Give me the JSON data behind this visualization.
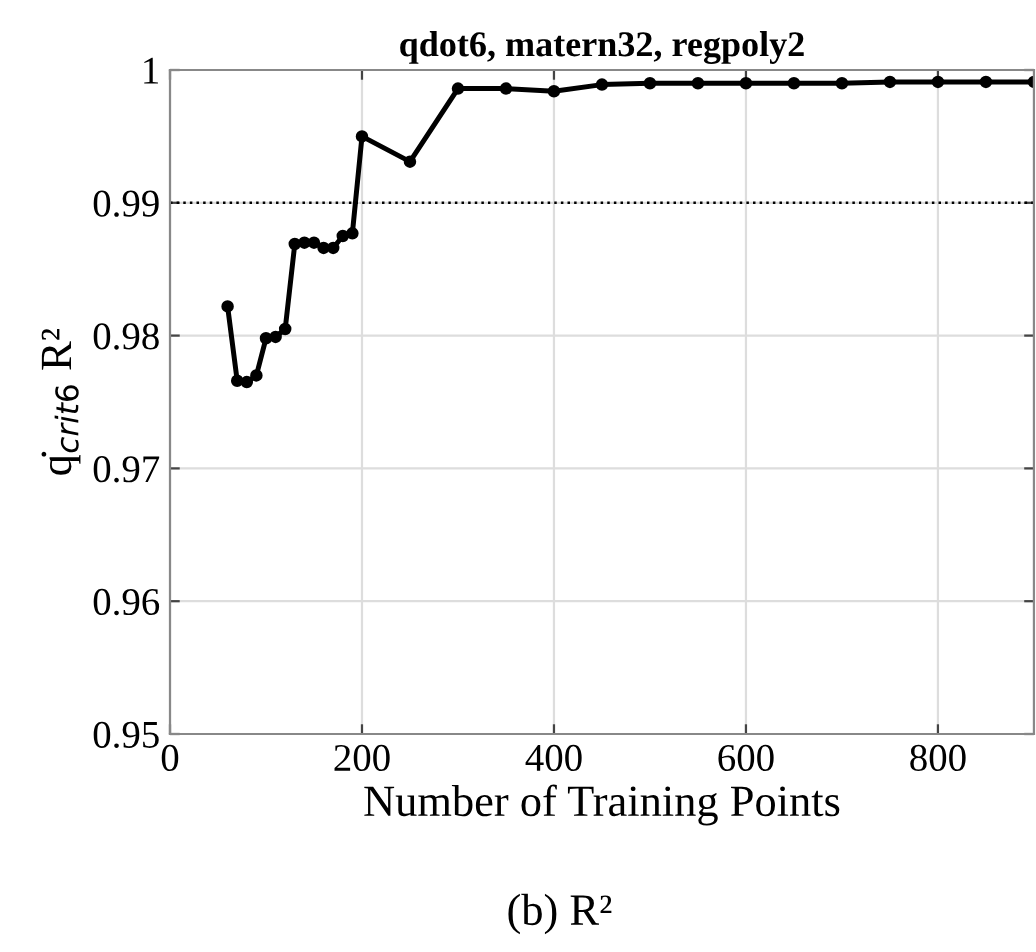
{
  "chart_data": {
    "type": "line",
    "title": "qdot6, matern32, regpoly2",
    "xlabel": "Number of Training Points",
    "ylabel": "q̇$_{crit6}$ R²",
    "annotations": [
      "(b) R²"
    ],
    "x": [
      60,
      70,
      80,
      90,
      100,
      110,
      120,
      130,
      140,
      150,
      160,
      170,
      180,
      190,
      200,
      250,
      300,
      350,
      400,
      450,
      500,
      550,
      600,
      650,
      700,
      750,
      800,
      850,
      900
    ],
    "series": [
      {
        "color": "#000000",
        "values": [
          0.9822,
          0.9766,
          0.9765,
          0.977,
          0.9798,
          0.9799,
          0.9805,
          0.9869,
          0.987,
          0.987,
          0.9866,
          0.9866,
          0.9875,
          0.9877,
          0.995,
          0.9931,
          0.9986,
          0.9986,
          0.9984,
          0.9989,
          0.999,
          0.999,
          0.999,
          0.999,
          0.999,
          0.9991,
          0.9991,
          0.9991,
          0.9991
        ]
      }
    ],
    "xlim": [
      0,
      900
    ],
    "xticks": [
      0,
      200,
      400,
      600,
      800
    ],
    "ylim": [
      0.95,
      1
    ],
    "yticks": [
      0.95,
      0.96,
      0.97,
      0.98,
      0.99,
      1
    ],
    "ref_lines": [
      {
        "axis": "y",
        "value": 0.99,
        "color": "#000000",
        "line_style": "dotted"
      }
    ],
    "grid": true,
    "marker": "circle",
    "line_style": "solid"
  }
}
